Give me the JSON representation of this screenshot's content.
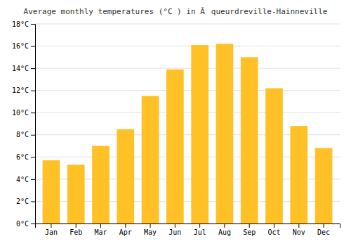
{
  "chart_data": {
    "type": "bar",
    "title": "Average monthly temperatures (°C ) in Ãqueurdreville-Hainneville",
    "categories": [
      "Jan",
      "Feb",
      "Mar",
      "Apr",
      "May",
      "Jun",
      "Jul",
      "Aug",
      "Sep",
      "Oct",
      "Nov",
      "Dec"
    ],
    "values": [
      5.7,
      5.3,
      7.0,
      8.5,
      11.5,
      13.9,
      16.1,
      16.2,
      15.0,
      12.2,
      8.8,
      6.8
    ],
    "color": "#FFC125",
    "ylim": [
      0,
      18
    ],
    "yticks": [
      {
        "value": 0,
        "label": "0°C"
      },
      {
        "value": 2,
        "label": "2°C"
      },
      {
        "value": 4,
        "label": "4°C"
      },
      {
        "value": 6,
        "label": "6°C"
      },
      {
        "value": 8,
        "label": "8°C"
      },
      {
        "value": 10,
        "label": "10°C"
      },
      {
        "value": 12,
        "label": "12°C"
      },
      {
        "value": 14,
        "label": "14°C"
      },
      {
        "value": 16,
        "label": "16°C"
      },
      {
        "value": 18,
        "label": "18°C"
      }
    ],
    "grid": true
  }
}
